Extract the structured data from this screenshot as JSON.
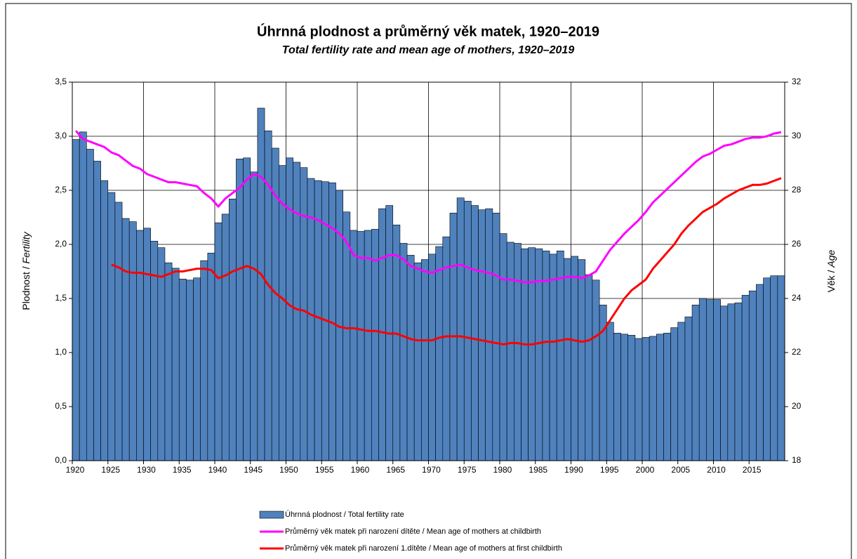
{
  "chart_data": {
    "type": "bar",
    "title": "Úhrnná plodnost a průměrný věk matek, 1920–2019",
    "subtitle": "Total fertility rate and mean age of mothers, 1920–2019",
    "ylabel": [
      "Plodnost / ",
      "Fertility"
    ],
    "y2label": [
      "Věk / ",
      "Age"
    ],
    "x": [
      1920,
      1921,
      1922,
      1923,
      1924,
      1925,
      1926,
      1927,
      1928,
      1929,
      1930,
      1931,
      1932,
      1933,
      1934,
      1935,
      1936,
      1937,
      1938,
      1939,
      1940,
      1941,
      1942,
      1943,
      1944,
      1945,
      1946,
      1947,
      1948,
      1949,
      1950,
      1951,
      1952,
      1953,
      1954,
      1955,
      1956,
      1957,
      1958,
      1959,
      1960,
      1961,
      1962,
      1963,
      1964,
      1965,
      1966,
      1967,
      1968,
      1969,
      1970,
      1971,
      1972,
      1973,
      1974,
      1975,
      1976,
      1977,
      1978,
      1979,
      1980,
      1981,
      1982,
      1983,
      1984,
      1985,
      1986,
      1987,
      1988,
      1989,
      1990,
      1991,
      1992,
      1993,
      1994,
      1995,
      1996,
      1997,
      1998,
      1999,
      2000,
      2001,
      2002,
      2003,
      2004,
      2005,
      2006,
      2007,
      2008,
      2009,
      2010,
      2011,
      2012,
      2013,
      2014,
      2015,
      2016,
      2017,
      2018,
      2019
    ],
    "series": [
      {
        "name": "Úhrnná plodnost / Total fertility rate",
        "type": "bar",
        "color": "#4f81bd",
        "values": [
          2.97,
          3.04,
          2.88,
          2.77,
          2.59,
          2.48,
          2.39,
          2.24,
          2.21,
          2.13,
          2.15,
          2.03,
          1.97,
          1.83,
          1.78,
          1.68,
          1.67,
          1.69,
          1.85,
          1.92,
          2.2,
          2.28,
          2.42,
          2.79,
          2.8,
          2.67,
          3.26,
          3.05,
          2.89,
          2.73,
          2.8,
          2.76,
          2.71,
          2.61,
          2.59,
          2.58,
          2.57,
          2.5,
          2.3,
          2.13,
          2.12,
          2.13,
          2.14,
          2.33,
          2.36,
          2.18,
          2.01,
          1.9,
          1.83,
          1.86,
          1.91,
          1.98,
          2.07,
          2.29,
          2.43,
          2.4,
          2.36,
          2.32,
          2.33,
          2.29,
          2.1,
          2.02,
          2.01,
          1.96,
          1.97,
          1.96,
          1.94,
          1.91,
          1.94,
          1.87,
          1.89,
          1.86,
          1.72,
          1.67,
          1.44,
          1.28,
          1.18,
          1.17,
          1.16,
          1.13,
          1.14,
          1.15,
          1.17,
          1.18,
          1.23,
          1.28,
          1.33,
          1.44,
          1.5,
          1.49,
          1.49,
          1.43,
          1.45,
          1.46,
          1.53,
          1.57,
          1.63,
          1.69,
          1.71,
          1.71
        ]
      },
      {
        "name": "Průměrný věk matek při narození dítěte / Mean age of mothers at childbirth",
        "type": "line",
        "axis": "y2",
        "color": "#ff00ff",
        "values": [
          30.2,
          29.9,
          29.8,
          29.7,
          29.6,
          29.4,
          29.3,
          29.1,
          28.9,
          28.8,
          28.6,
          28.5,
          28.4,
          28.3,
          28.3,
          28.25,
          28.2,
          28.15,
          27.9,
          27.7,
          27.4,
          27.7,
          27.9,
          28.1,
          28.4,
          28.6,
          28.5,
          28.2,
          27.8,
          27.5,
          27.3,
          27.15,
          27.05,
          27.0,
          26.9,
          26.75,
          26.6,
          26.4,
          26.1,
          25.6,
          25.5,
          25.5,
          25.4,
          25.5,
          25.6,
          25.6,
          25.45,
          25.2,
          25.1,
          25.0,
          24.95,
          25.05,
          25.15,
          25.2,
          25.25,
          25.15,
          25.05,
          25.0,
          24.95,
          24.85,
          24.7,
          24.7,
          24.65,
          24.6,
          24.6,
          24.65,
          24.65,
          24.7,
          24.75,
          24.8,
          24.8,
          24.75,
          24.85,
          25.0,
          25.4,
          25.8,
          26.1,
          26.4,
          26.65,
          26.9,
          27.2,
          27.55,
          27.8,
          28.05,
          28.3,
          28.55,
          28.8,
          29.05,
          29.25,
          29.35,
          29.5,
          29.65,
          29.7,
          29.8,
          29.9,
          29.95,
          29.95,
          30.0,
          30.1,
          30.15
        ]
      },
      {
        "name": "Průměrný věk matek při narození 1.dítěte / Mean age of mothers at first childbirth",
        "type": "line",
        "axis": "y2",
        "color": "#ff0000",
        "values": [
          null,
          null,
          null,
          null,
          null,
          25.25,
          25.15,
          25.0,
          24.95,
          24.95,
          24.9,
          24.85,
          24.8,
          24.9,
          25.0,
          25.0,
          25.05,
          25.1,
          25.1,
          25.05,
          24.75,
          24.85,
          25.0,
          25.1,
          25.2,
          25.1,
          24.9,
          24.5,
          24.2,
          24.0,
          23.75,
          23.6,
          23.55,
          23.4,
          23.3,
          23.2,
          23.1,
          22.95,
          22.9,
          22.9,
          22.85,
          22.8,
          22.8,
          22.75,
          22.7,
          22.7,
          22.6,
          22.5,
          22.45,
          22.45,
          22.45,
          22.55,
          22.6,
          22.6,
          22.6,
          22.55,
          22.5,
          22.45,
          22.4,
          22.35,
          22.3,
          22.35,
          22.35,
          22.3,
          22.3,
          22.35,
          22.4,
          22.4,
          22.45,
          22.5,
          22.45,
          22.4,
          22.45,
          22.6,
          22.8,
          23.2,
          23.6,
          24.0,
          24.3,
          24.5,
          24.7,
          25.1,
          25.4,
          25.7,
          26.0,
          26.4,
          26.7,
          26.95,
          27.2,
          27.35,
          27.5,
          27.7,
          27.85,
          28.0,
          28.1,
          28.2,
          28.2,
          28.25,
          28.35,
          28.45
        ]
      }
    ],
    "xlim": [
      1920,
      2020
    ],
    "xticks": [
      1920,
      1925,
      1930,
      1935,
      1940,
      1945,
      1950,
      1955,
      1960,
      1965,
      1970,
      1975,
      1980,
      1985,
      1990,
      1995,
      2000,
      2005,
      2010,
      2015
    ],
    "ylim": [
      0,
      3.5
    ],
    "yticks": [
      {
        "value": 0,
        "label": "0,0"
      },
      {
        "value": 0.5,
        "label": "0,5"
      },
      {
        "value": 1,
        "label": "1,0"
      },
      {
        "value": 1.5,
        "label": "1,5"
      },
      {
        "value": 2,
        "label": "2,0"
      },
      {
        "value": 2.5,
        "label": "2,5"
      },
      {
        "value": 3,
        "label": "3,0"
      },
      {
        "value": 3.5,
        "label": "3,5"
      }
    ],
    "y2lim": [
      18,
      32
    ],
    "y2ticks": [
      18,
      20,
      22,
      24,
      26,
      28,
      30,
      32
    ],
    "grid": true,
    "legend": "bottom"
  }
}
